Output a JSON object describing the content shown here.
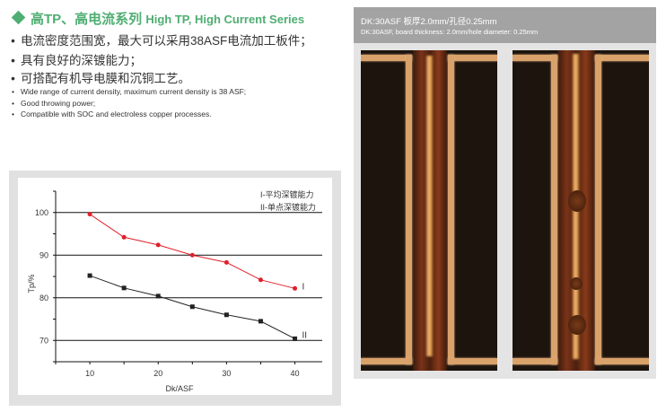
{
  "header": {
    "title_zh": "高TP、高电流系列",
    "title_en": "High TP, High Current Series",
    "accent": "#4fae72"
  },
  "features_zh": [
    "电流密度范围宽，最大可以采用38ASF电流加工板件；",
    "具有良好的深镀能力；",
    "可搭配有机导电膜和沉铜工艺。"
  ],
  "features_en": [
    "Wide range of current density, maximum current density is 38 ASF;",
    "Good throwing power;",
    "Compatible with SOC and electroless copper processes."
  ],
  "bullet": "•",
  "photos": {
    "caption_zh": "DK:30ASF  板厚2.0mm/孔径0.25mm",
    "caption_en": "DK:30ASF, board thickness: 2.0mm/hole diameter: 0.25mm"
  },
  "chart_data": {
    "type": "line",
    "xlabel": "Dk/ASF",
    "ylabel": "Tp/%",
    "xlim": [
      5,
      44
    ],
    "ylim": [
      65,
      105
    ],
    "xticks": [
      10,
      20,
      30,
      40
    ],
    "yticks": [
      70,
      80,
      90,
      100
    ],
    "grid": "horizontal",
    "legend": [
      "I-平均深镀能力",
      "II-单点深镀能力"
    ],
    "legend_position": "top-right",
    "x": [
      10,
      15,
      20,
      25,
      30,
      35,
      40
    ],
    "series": [
      {
        "name": "I",
        "color": "#e0202a",
        "marker": "circle",
        "values": [
          99.6,
          94.2,
          92.4,
          90.0,
          88.3,
          84.2,
          82.2
        ]
      },
      {
        "name": "II",
        "color": "#222222",
        "marker": "square",
        "values": [
          85.2,
          82.3,
          80.4,
          77.9,
          76.0,
          74.5,
          70.4
        ]
      }
    ]
  }
}
